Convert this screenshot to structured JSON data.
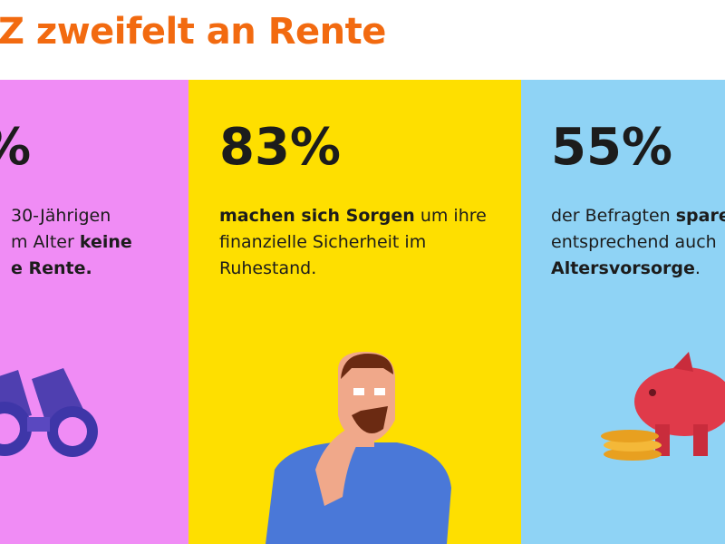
{
  "title": "Z zweifelt an Rente",
  "panels": [
    {
      "stat": "%",
      "lines": [
        [
          {
            "text": "30-Jährigen"
          }
        ],
        [
          {
            "text": "m Alter "
          },
          {
            "text": "keine",
            "bold": true
          }
        ],
        [
          {
            "text": "e Rente.",
            "bold": true
          }
        ]
      ]
    },
    {
      "stat": "83%",
      "lines": [
        [
          {
            "text": "machen sich Sorgen",
            "bold": true
          },
          {
            "text": " um ihre"
          }
        ],
        [
          {
            "text": "finanzielle Sicherheit im"
          }
        ],
        [
          {
            "text": "Ruhestand."
          }
        ]
      ]
    },
    {
      "stat": "55%",
      "lines": [
        [
          {
            "text": "der Befragten "
          },
          {
            "text": "spare",
            "bold": true
          }
        ],
        [
          {
            "text": "entsprechend auch"
          }
        ],
        [
          {
            "text": "Altersvorsorge",
            "bold": true
          },
          {
            "text": "."
          }
        ]
      ]
    }
  ]
}
